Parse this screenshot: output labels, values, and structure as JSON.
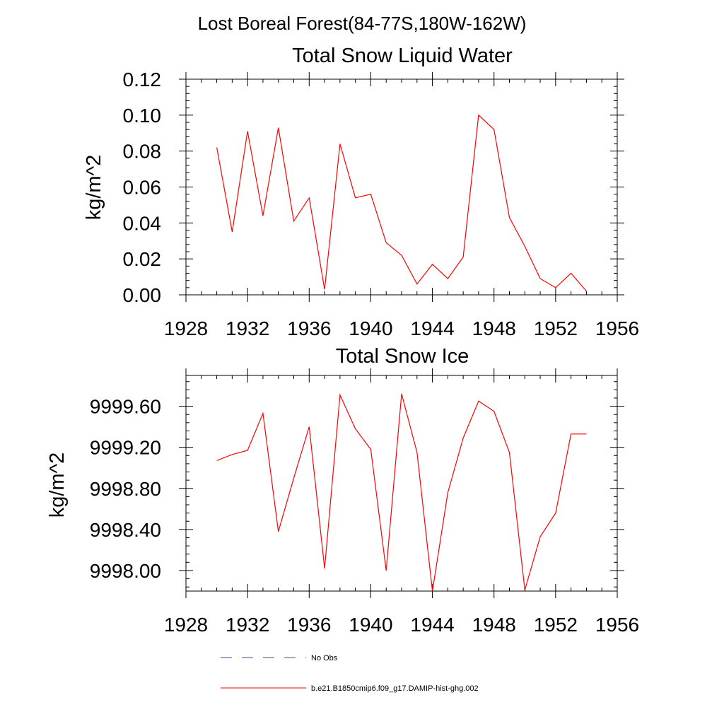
{
  "figure": {
    "suptitle": "Lost Boreal Forest(84-77S,180W-162W)"
  },
  "colors": {
    "series": "#ff0000",
    "no_obs": "#4a4a8a",
    "axis": "#000000"
  },
  "legend": {
    "entries": [
      {
        "label": "No Obs",
        "style": "dashed",
        "color": "#4a4a8a"
      },
      {
        "label": "b.e21.B1850cmip6.f09_g17.DAMIP-hist-ghg.002",
        "style": "solid",
        "color": "#ff0000"
      }
    ]
  },
  "chart_data": [
    {
      "type": "line",
      "title": "Total Snow Liquid Water",
      "xlabel": "",
      "ylabel": "kg/m^2",
      "xlim": [
        1928,
        1956
      ],
      "ylim": [
        0.0,
        0.12
      ],
      "xticks": [
        1928,
        1932,
        1936,
        1940,
        1944,
        1948,
        1952,
        1956
      ],
      "xtick_labels": [
        "1928",
        "1932",
        "1936",
        "1940",
        "1944",
        "1948",
        "1952",
        "1956"
      ],
      "yticks": [
        0.0,
        0.02,
        0.04,
        0.06,
        0.08,
        0.1,
        0.12
      ],
      "ytick_labels": [
        "0.00",
        "0.02",
        "0.04",
        "0.06",
        "0.08",
        "0.10",
        "0.12"
      ],
      "grid": false,
      "series": [
        {
          "name": "b.e21.B1850cmip6.f09_g17.DAMIP-hist-ghg.002",
          "x": [
            1930,
            1931,
            1932,
            1933,
            1934,
            1935,
            1936,
            1937,
            1938,
            1939,
            1940,
            1941,
            1942,
            1943,
            1944,
            1945,
            1946,
            1947,
            1948,
            1949,
            1950,
            1951,
            1952,
            1953,
            1954
          ],
          "values": [
            0.082,
            0.035,
            0.091,
            0.044,
            0.093,
            0.041,
            0.054,
            0.003,
            0.084,
            0.054,
            0.056,
            0.029,
            0.022,
            0.006,
            0.017,
            0.009,
            0.021,
            0.1,
            0.092,
            0.043,
            0.027,
            0.009,
            0.004,
            0.012,
            0.002
          ]
        }
      ]
    },
    {
      "type": "line",
      "title": "Total Snow Ice",
      "xlabel": "",
      "ylabel": "kg/m^2",
      "xlim": [
        1928,
        1956
      ],
      "ylim": [
        9997.8,
        9999.9
      ],
      "xticks": [
        1928,
        1932,
        1936,
        1940,
        1944,
        1948,
        1952,
        1956
      ],
      "xtick_labels": [
        "1928",
        "1932",
        "1936",
        "1940",
        "1944",
        "1948",
        "1952",
        "1956"
      ],
      "yticks": [
        9998.0,
        9998.4,
        9998.8,
        9999.2,
        9999.6
      ],
      "ytick_labels": [
        "9998.00",
        "9998.40",
        "9998.80",
        "9999.20",
        "9999.60"
      ],
      "grid": false,
      "series": [
        {
          "name": "b.e21.B1850cmip6.f09_g17.DAMIP-hist-ghg.002",
          "x": [
            1930,
            1931,
            1932,
            1933,
            1934,
            1935,
            1936,
            1937,
            1938,
            1939,
            1940,
            1941,
            1942,
            1943,
            1944,
            1945,
            1946,
            1947,
            1948,
            1949,
            1950,
            1951,
            1952,
            1953,
            1954
          ],
          "values": [
            9999.07,
            9999.13,
            9999.17,
            9999.53,
            9998.38,
            9998.9,
            9999.4,
            9998.02,
            9999.71,
            9999.38,
            9999.18,
            9998.0,
            9999.72,
            9999.15,
            9997.8,
            9998.76,
            9999.29,
            9999.65,
            9999.55,
            9999.15,
            9997.81,
            9998.33,
            9998.56,
            9999.33,
            9999.33
          ]
        }
      ]
    }
  ]
}
